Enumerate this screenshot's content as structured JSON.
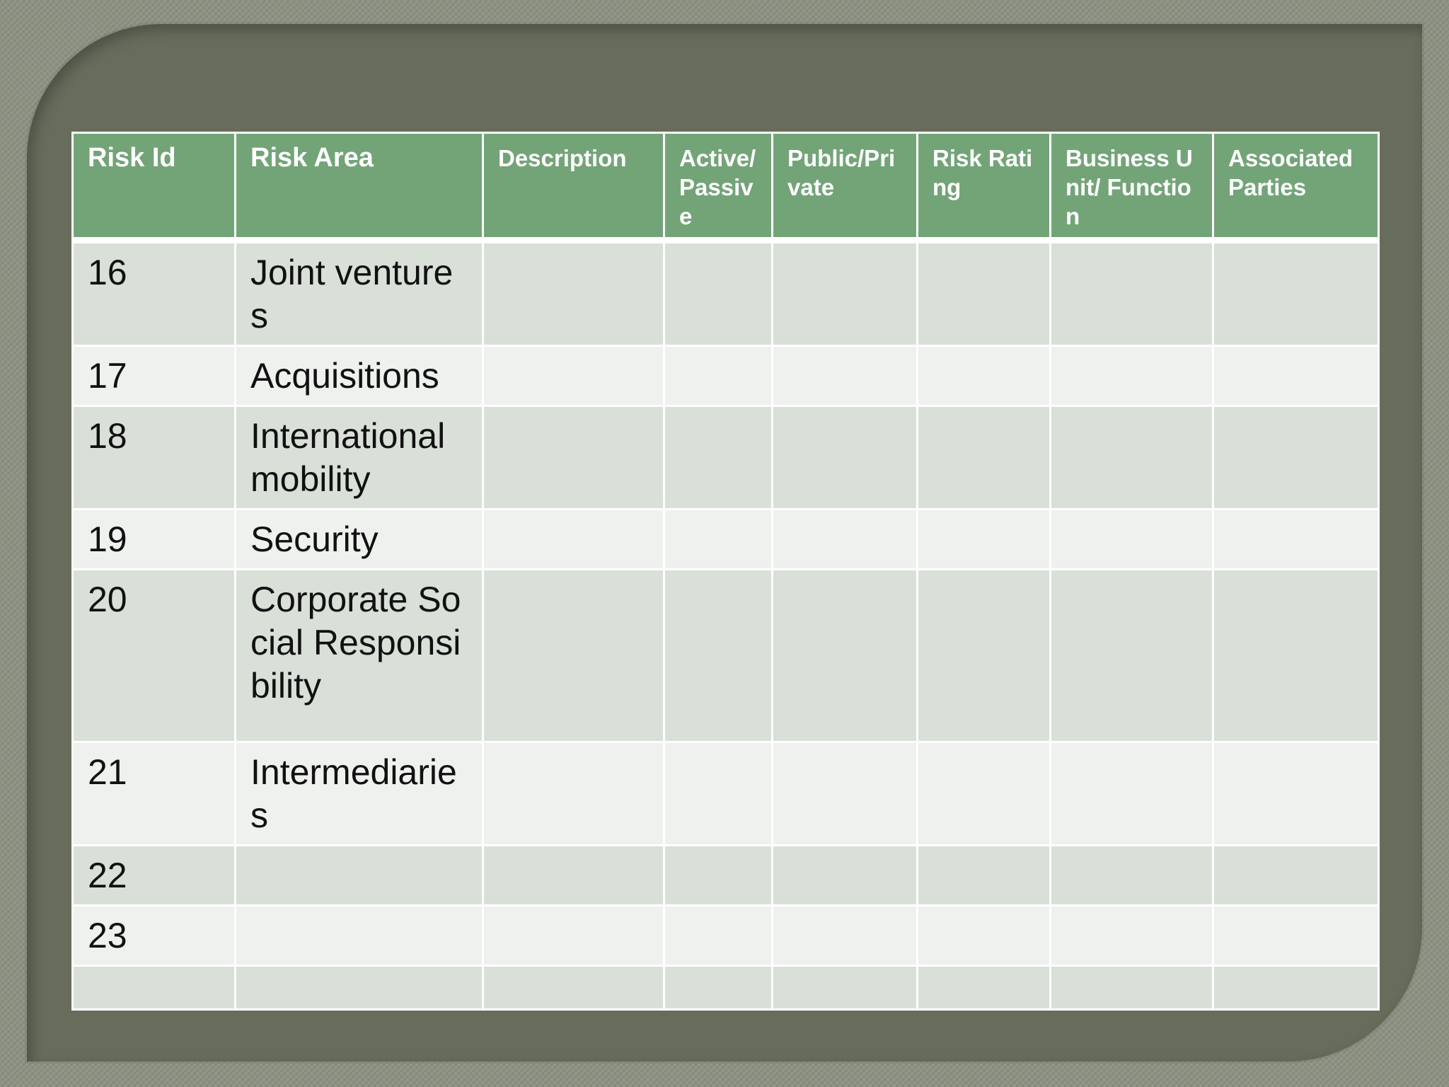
{
  "table": {
    "headers": [
      "Risk Id",
      "Risk Area",
      "Description",
      "Active/ Passive",
      "Public/Private",
      "Risk Rating",
      "Business Unit/ Function",
      "Associated Parties"
    ],
    "rows": [
      {
        "id": "16",
        "area": "Joint ventures"
      },
      {
        "id": "17",
        "area": "Acquisitions"
      },
      {
        "id": "18",
        "area": "International mobility"
      },
      {
        "id": "19",
        "area": "Security"
      },
      {
        "id": "20",
        "area": "Corporate Social Responsibility"
      },
      {
        "id": "21",
        "area": "Intermediaries"
      },
      {
        "id": "22",
        "area": ""
      },
      {
        "id": "23",
        "area": ""
      },
      {
        "id": "",
        "area": ""
      }
    ]
  },
  "colors": {
    "header_bg": "#73a478",
    "row_odd_bg": "#d8e0d8",
    "row_even_bg": "#eef1ee",
    "frame": "#676c5b"
  }
}
